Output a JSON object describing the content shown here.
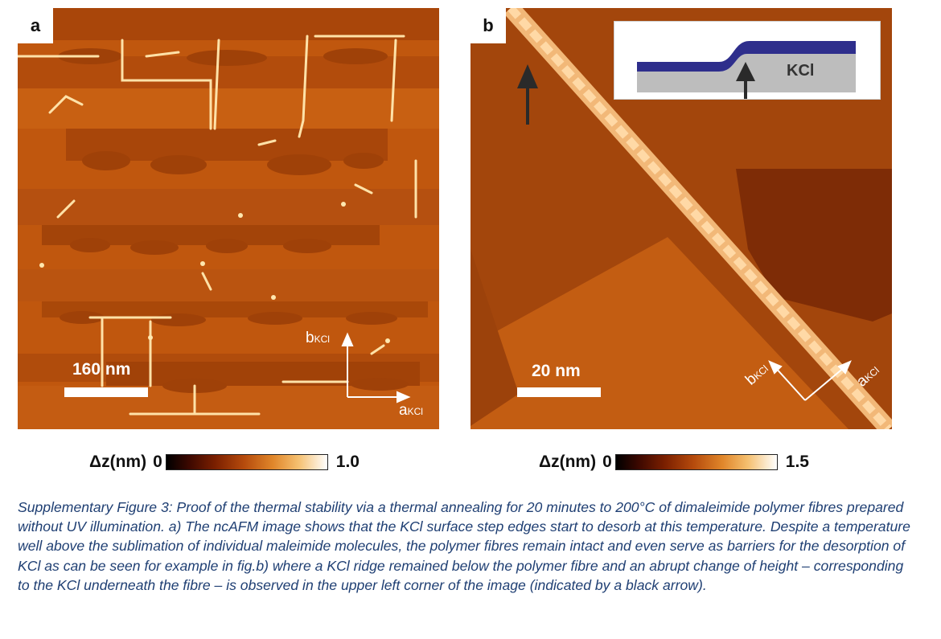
{
  "panels": [
    {
      "letter": "a",
      "scalebar": "160 nm",
      "axis_b": "b",
      "axis_a": "a",
      "axis_sub": "KCl",
      "colorbar": {
        "label": "Δz(nm)",
        "min": "0",
        "max": "1.0"
      }
    },
    {
      "letter": "b",
      "scalebar": "20 nm",
      "axis_b": "b",
      "axis_a": "a",
      "axis_sub": "KCl",
      "inset_label": "KCl",
      "colorbar": {
        "label": "Δz(nm)",
        "min": "0",
        "max": "1.5"
      }
    }
  ],
  "colors": {
    "colormap": [
      "#000000",
      "#3c0800",
      "#7a1f00",
      "#b54a0c",
      "#e0862a",
      "#f5c070",
      "#ffffff"
    ],
    "inset_polymer": "#2e2e8c",
    "inset_kcl": "#bdbdbd",
    "caption": "#1f3f73"
  },
  "caption": "Supplementary Figure 3: Proof of the thermal stability via a thermal annealing for 20 minutes to 200°C of dimaleimide polymer fibres prepared without UV illumination. a) The ncAFM image shows that the KCl surface step edges start to desorb at this temperature. Despite a temperature well above the sublimation of individual maleimide molecules, the polymer fibres remain intact and even serve as barriers for the desorption of KCl as can be seen for example in fig.b) where a KCl ridge remained below the polymer fibre and an abrupt change of height – corresponding to the KCl underneath the fibre – is observed in the upper left corner of the image (indicated by a black arrow)."
}
